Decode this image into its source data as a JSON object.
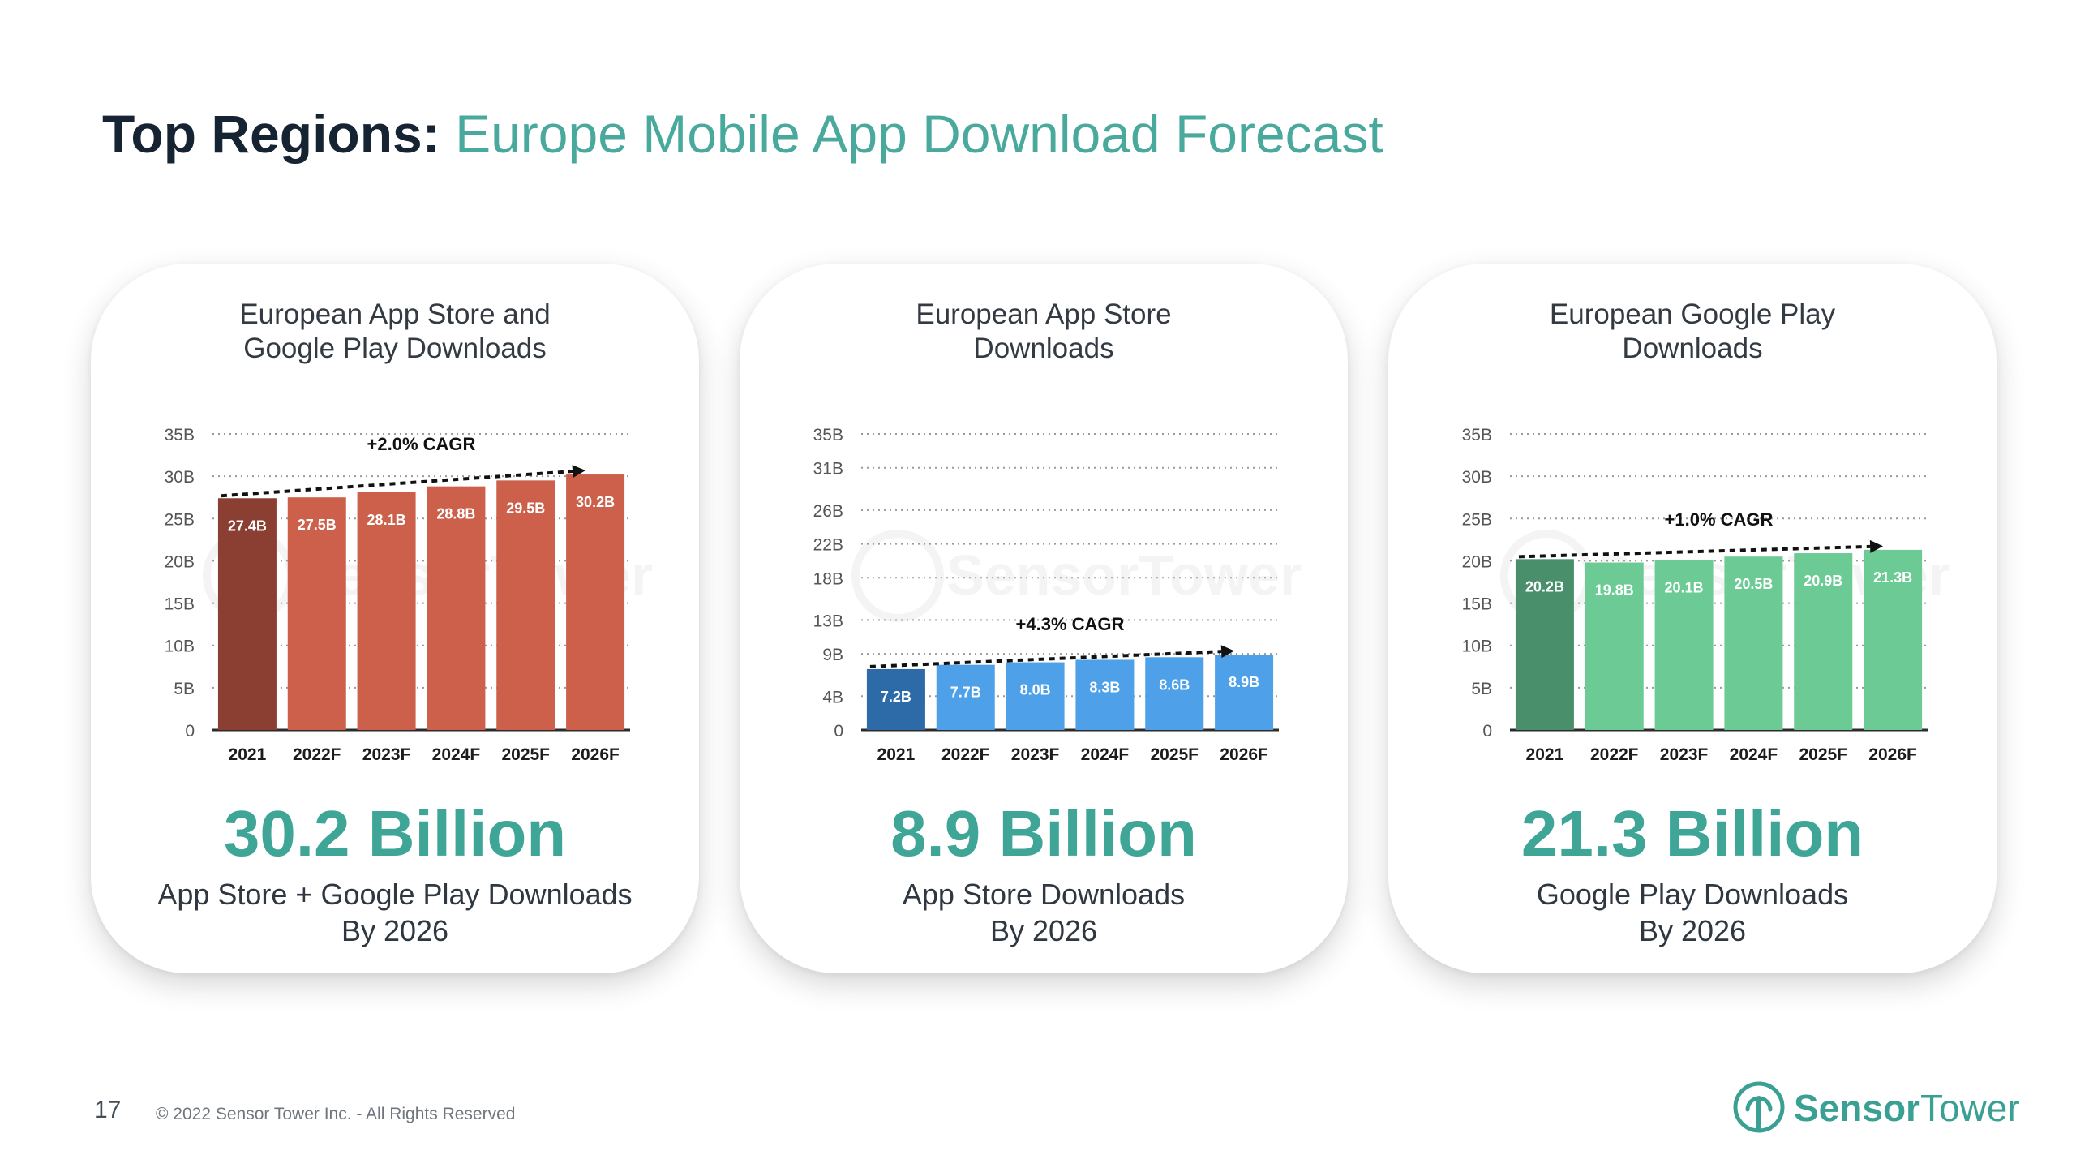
{
  "header": {
    "title_lead": "Top Regions:",
    "title_rest": " Europe Mobile App Download Forecast"
  },
  "footer": {
    "page_number": "17",
    "copyright": "© 2022 Sensor Tower Inc. - All Rights Reserved",
    "logo_word1": "Sensor",
    "logo_word2": "Tower",
    "logo_icon": "sensor-tower-pin-icon"
  },
  "watermark": "SensorTower",
  "panels": [
    {
      "title": "European App Store and\nGoogle Play Downloads",
      "big_value": "30.2 Billion",
      "sub_line1": "App Store + Google Play Downloads",
      "sub_line2": "By 2026"
    },
    {
      "title": "European App Store\nDownloads",
      "big_value": "8.9 Billion",
      "sub_line1": "App Store Downloads",
      "sub_line2": "By 2026"
    },
    {
      "title": "European Google Play\nDownloads",
      "big_value": "21.3 Billion",
      "sub_line1": "Google Play Downloads",
      "sub_line2": "By 2026"
    }
  ],
  "chart_data": [
    {
      "type": "bar",
      "title": "European App Store and Google Play Downloads",
      "categories": [
        "2021",
        "2022F",
        "2023F",
        "2024F",
        "2025F",
        "2026F"
      ],
      "values": [
        27.4,
        27.5,
        28.1,
        28.8,
        29.5,
        30.2
      ],
      "value_labels": [
        "27.4B",
        "27.5B",
        "28.1B",
        "28.8B",
        "29.5B",
        "30.2B"
      ],
      "yticks": [
        0,
        5,
        10,
        15,
        20,
        25,
        30,
        35
      ],
      "ytick_labels": [
        "0",
        "5B",
        "10B",
        "15B",
        "20B",
        "25B",
        "30B",
        "35B"
      ],
      "ylim": [
        0,
        35
      ],
      "annotation": "+2.0% CAGR",
      "grid": "dotted",
      "colors": {
        "first": "#8b3f33",
        "rest": "#cc604a"
      }
    },
    {
      "type": "bar",
      "title": "European App Store Downloads",
      "categories": [
        "2021",
        "2022F",
        "2023F",
        "2024F",
        "2025F",
        "2026F"
      ],
      "values": [
        7.2,
        7.7,
        8.0,
        8.3,
        8.6,
        8.9
      ],
      "value_labels": [
        "7.2B",
        "7.7B",
        "8.0B",
        "8.3B",
        "8.6B",
        "8.9B"
      ],
      "yticks": [
        0,
        4,
        9,
        13,
        18,
        22,
        26,
        31,
        35
      ],
      "ytick_labels": [
        "0",
        "4B",
        "9B",
        "13B",
        "18B",
        "22B",
        "26B",
        "31B",
        "35B"
      ],
      "ylim": [
        0,
        35
      ],
      "annotation": "+4.3% CAGR",
      "grid": "dotted",
      "colors": {
        "first": "#2c6aa8",
        "rest": "#4ea1e9"
      }
    },
    {
      "type": "bar",
      "title": "European Google Play Downloads",
      "categories": [
        "2021",
        "2022F",
        "2023F",
        "2024F",
        "2025F",
        "2026F"
      ],
      "values": [
        20.2,
        19.8,
        20.1,
        20.5,
        20.9,
        21.3
      ],
      "value_labels": [
        "20.2B",
        "19.8B",
        "20.1B",
        "20.5B",
        "20.9B",
        "21.3B"
      ],
      "yticks": [
        0,
        5,
        10,
        15,
        20,
        25,
        30,
        35
      ],
      "ytick_labels": [
        "0",
        "5B",
        "10B",
        "15B",
        "20B",
        "25B",
        "30B",
        "35B"
      ],
      "ylim": [
        0,
        35
      ],
      "annotation": "+1.0% CAGR",
      "grid": "dotted",
      "colors": {
        "first": "#4a8f6c",
        "rest": "#6ccb95"
      }
    }
  ]
}
